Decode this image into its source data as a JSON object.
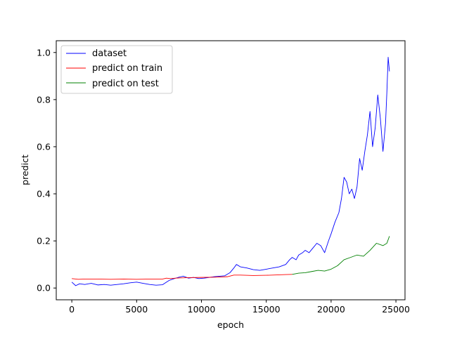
{
  "chart_data": {
    "type": "line",
    "title": "",
    "xlabel": "epoch",
    "ylabel": "predict",
    "xlim": [
      -1200,
      25700
    ],
    "ylim": [
      -0.05,
      1.05
    ],
    "xticks": [
      0,
      5000,
      10000,
      15000,
      20000,
      25000
    ],
    "yticks": [
      0.0,
      0.2,
      0.4,
      0.6,
      0.8,
      1.0
    ],
    "xtick_labels": [
      "0",
      "5000",
      "10000",
      "15000",
      "20000",
      "25000"
    ],
    "ytick_labels": [
      "0.0",
      "0.2",
      "0.4",
      "0.6",
      "0.8",
      "1.0"
    ],
    "grid": false,
    "legend_position": "top-left",
    "series": [
      {
        "name": "dataset",
        "color": "#0000ff",
        "x": [
          0,
          300,
          600,
          1000,
          1500,
          2000,
          2500,
          3000,
          3500,
          4000,
          4500,
          5000,
          5500,
          6000,
          6500,
          7000,
          7300,
          7500,
          7800,
          8200,
          8600,
          9000,
          9400,
          9800,
          10200,
          10600,
          11000,
          11400,
          11800,
          12200,
          12500,
          12700,
          13000,
          13500,
          14000,
          14500,
          15000,
          15500,
          16000,
          16500,
          16800,
          17000,
          17300,
          17500,
          17800,
          18000,
          18300,
          18600,
          18900,
          19200,
          19500,
          19800,
          20000,
          20300,
          20600,
          20800,
          21000,
          21200,
          21400,
          21600,
          21800,
          22000,
          22200,
          22400,
          22600,
          22800,
          23000,
          23200,
          23400,
          23600,
          23800,
          24000,
          24200,
          24300,
          24400,
          24500
        ],
        "y": [
          0.025,
          0.01,
          0.018,
          0.015,
          0.02,
          0.013,
          0.015,
          0.012,
          0.015,
          0.018,
          0.022,
          0.025,
          0.02,
          0.015,
          0.012,
          0.014,
          0.025,
          0.032,
          0.038,
          0.045,
          0.05,
          0.042,
          0.045,
          0.04,
          0.042,
          0.045,
          0.048,
          0.05,
          0.052,
          0.065,
          0.085,
          0.1,
          0.09,
          0.085,
          0.078,
          0.075,
          0.08,
          0.085,
          0.09,
          0.1,
          0.12,
          0.13,
          0.12,
          0.14,
          0.15,
          0.16,
          0.15,
          0.17,
          0.19,
          0.18,
          0.15,
          0.2,
          0.23,
          0.28,
          0.32,
          0.38,
          0.47,
          0.45,
          0.4,
          0.42,
          0.38,
          0.43,
          0.55,
          0.5,
          0.58,
          0.65,
          0.75,
          0.6,
          0.68,
          0.82,
          0.72,
          0.58,
          0.7,
          0.83,
          0.98,
          0.92
        ]
      },
      {
        "name": "predict on train",
        "color": "#ff0000",
        "x": [
          0,
          500,
          1000,
          2000,
          3000,
          4000,
          5000,
          6000,
          7000,
          7300,
          7600,
          8000,
          9000,
          10000,
          11000,
          12000,
          12500,
          13000,
          14000,
          15000,
          16000,
          16500,
          17000
        ],
        "y": [
          0.04,
          0.037,
          0.038,
          0.038,
          0.037,
          0.038,
          0.037,
          0.038,
          0.038,
          0.042,
          0.04,
          0.042,
          0.044,
          0.045,
          0.046,
          0.048,
          0.055,
          0.055,
          0.053,
          0.054,
          0.056,
          0.057,
          0.058
        ]
      },
      {
        "name": "predict on test",
        "color": "#008000",
        "x": [
          17000,
          17500,
          18000,
          18500,
          19000,
          19500,
          20000,
          20500,
          21000,
          21500,
          22000,
          22500,
          23000,
          23500,
          24000,
          24300,
          24500
        ],
        "y": [
          0.058,
          0.063,
          0.065,
          0.07,
          0.075,
          0.072,
          0.08,
          0.095,
          0.12,
          0.13,
          0.14,
          0.135,
          0.16,
          0.19,
          0.18,
          0.19,
          0.22
        ]
      }
    ]
  }
}
